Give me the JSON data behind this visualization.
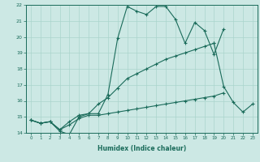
{
  "xlabel": "Humidex (Indice chaleur)",
  "bg_color": "#cce8e4",
  "grid_color": "#aad4cc",
  "line_color": "#1a6b5a",
  "xlim": [
    -0.5,
    23.5
  ],
  "ylim": [
    14,
    22
  ],
  "xticks": [
    0,
    1,
    2,
    3,
    4,
    5,
    6,
    7,
    8,
    9,
    10,
    11,
    12,
    13,
    14,
    15,
    16,
    17,
    18,
    19,
    20,
    21,
    22,
    23
  ],
  "yticks": [
    14,
    15,
    16,
    17,
    18,
    19,
    20,
    21,
    22
  ],
  "line1_x": [
    0,
    1,
    2,
    3,
    4,
    5,
    6,
    7,
    8,
    9,
    10,
    11,
    12,
    13,
    14,
    15,
    16,
    17,
    18,
    19,
    20
  ],
  "line1_y": [
    14.8,
    14.6,
    14.7,
    14.1,
    13.9,
    15.0,
    15.2,
    15.2,
    16.4,
    19.9,
    21.9,
    21.6,
    21.4,
    21.9,
    21.9,
    21.1,
    19.6,
    20.9,
    20.4,
    18.9,
    20.5
  ],
  "line2_x": [
    0,
    1,
    2,
    3,
    4,
    5,
    6,
    7,
    8,
    9,
    10,
    11,
    12,
    13,
    14,
    15,
    16,
    17,
    18,
    19
  ],
  "line2_y": [
    14.8,
    14.6,
    14.7,
    14.2,
    14.7,
    15.1,
    15.2,
    15.8,
    16.2,
    16.8,
    17.4,
    17.7,
    18.0,
    18.3,
    18.6,
    18.8,
    19.0,
    19.2,
    19.4,
    19.6
  ],
  "line3_x": [
    0,
    1,
    2,
    3,
    4,
    5,
    6,
    7,
    8,
    9,
    10,
    11,
    12,
    13,
    14,
    15,
    16,
    17,
    18,
    19,
    20
  ],
  "line3_y": [
    14.8,
    14.6,
    14.7,
    14.2,
    14.5,
    14.9,
    15.1,
    15.1,
    15.2,
    15.3,
    15.4,
    15.5,
    15.6,
    15.7,
    15.8,
    15.9,
    16.0,
    16.1,
    16.2,
    16.3,
    16.5
  ],
  "line4_x": [
    19,
    20,
    21,
    22,
    23
  ],
  "line4_y": [
    19.6,
    16.9,
    15.9,
    15.3,
    15.8
  ]
}
